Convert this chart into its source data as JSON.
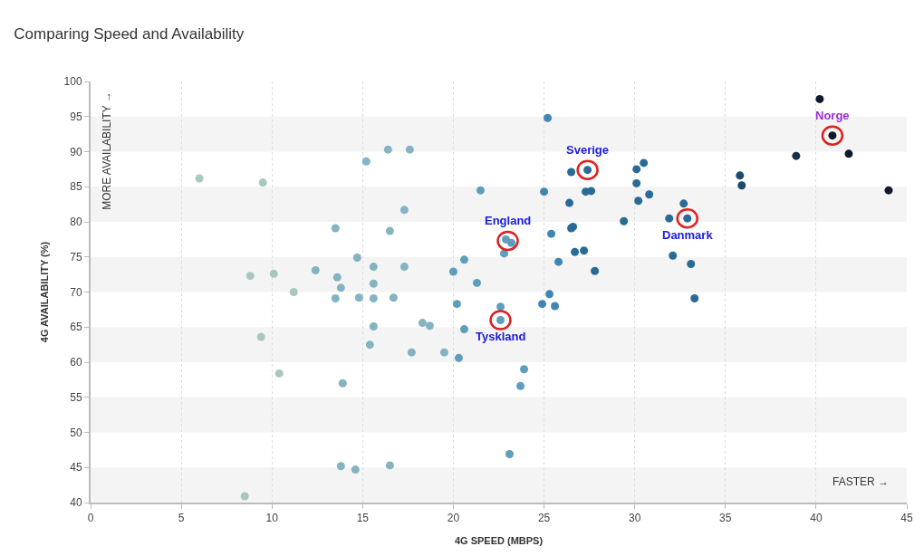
{
  "chart_data": {
    "type": "scatter",
    "title": "Comparing Speed and Availability",
    "xlabel": "4G SPEED (MBPS)",
    "ylabel": "4G AVAILABILITY (%)",
    "x": [
      6.0,
      9.5,
      8.8,
      9.4,
      10.1,
      10.4,
      11.2,
      8.5,
      12.4,
      13.5,
      13.6,
      13.5,
      13.8,
      13.9,
      13.8,
      14.6,
      14.7,
      15.2,
      14.8,
      15.6,
      15.6,
      15.6,
      15.6,
      15.4,
      16.4,
      16.5,
      16.7,
      16.5,
      17.3,
      17.3,
      17.6,
      17.7,
      18.3,
      18.7,
      19.5,
      20.0,
      20.2,
      20.3,
      20.6,
      20.6,
      21.3,
      21.5,
      22.6,
      22.6,
      22.9,
      23.2,
      22.8,
      23.1,
      23.7,
      23.9,
      25.0,
      25.2,
      25.4,
      25.3,
      24.9,
      25.6,
      25.8,
      26.5,
      26.4,
      26.5,
      26.6,
      26.7,
      27.2,
      27.3,
      27.6,
      27.4,
      27.8,
      29.4,
      30.1,
      30.1,
      30.2,
      30.5,
      30.8,
      31.9,
      32.1,
      32.7,
      32.9,
      33.1,
      33.3,
      35.8,
      35.9,
      38.9,
      40.2,
      40.9,
      41.8,
      44.0
    ],
    "values": [
      86.2,
      85.6,
      72.3,
      63.6,
      72.6,
      58.4,
      70.0,
      40.9,
      73.1,
      79.1,
      72.1,
      69.1,
      70.6,
      57.0,
      45.2,
      44.7,
      74.9,
      88.6,
      69.2,
      73.6,
      71.2,
      69.1,
      65.1,
      62.5,
      90.3,
      78.7,
      69.2,
      45.3,
      81.7,
      73.6,
      90.3,
      61.4,
      65.6,
      65.2,
      61.4,
      72.9,
      68.3,
      60.6,
      74.6,
      64.7,
      71.3,
      84.5,
      66.0,
      67.9,
      77.5,
      77.0,
      75.5,
      46.9,
      56.6,
      59.0,
      84.3,
      94.8,
      78.3,
      69.7,
      68.3,
      68.0,
      74.3,
      87.1,
      82.7,
      79.1,
      79.3,
      75.7,
      75.9,
      84.3,
      84.4,
      87.4,
      73.0,
      80.1,
      87.5,
      85.5,
      83.0,
      88.4,
      83.9,
      80.5,
      75.2,
      82.6,
      80.5,
      74.0,
      69.1,
      86.6,
      85.2,
      89.4,
      97.5,
      92.3,
      89.7,
      84.5
    ],
    "colors": [
      "#a8c8bf",
      "#a8c8bf",
      "#a8c8bf",
      "#a8c8bf",
      "#a8c8bf",
      "#a8c8bf",
      "#a8c8bf",
      "#a8c8bf",
      "#84b3c2",
      "#84b3c2",
      "#84b3c2",
      "#84b3c2",
      "#84b3c2",
      "#84b3c2",
      "#84b3c2",
      "#84b3c2",
      "#84b3c2",
      "#84b3c2",
      "#84b3c2",
      "#84b3c2",
      "#84b3c2",
      "#84b3c2",
      "#84b3c2",
      "#84b3c2",
      "#84b3c2",
      "#84b3c2",
      "#84b3c2",
      "#84b3c2",
      "#84b3c2",
      "#84b3c2",
      "#84b3c2",
      "#84b3c2",
      "#84b3c2",
      "#84b3c2",
      "#84b3c2",
      "#5f9dbd",
      "#5f9dbd",
      "#5f9dbd",
      "#5f9dbd",
      "#5f9dbd",
      "#5f9dbd",
      "#5f9dbd",
      "#5f9dbd",
      "#5f9dbd",
      "#5f9dbd",
      "#5f9dbd",
      "#5f9dbd",
      "#5f9dbd",
      "#5f9dbd",
      "#5f9dbd",
      "#3f86b3",
      "#3f86b3",
      "#3f86b3",
      "#3f86b3",
      "#3f86b3",
      "#3f86b3",
      "#3f86b3",
      "#2a6b96",
      "#2a6b96",
      "#2a6b96",
      "#2a6b96",
      "#2a6b96",
      "#2a6b96",
      "#2a6b96",
      "#2a6b96",
      "#2a6b96",
      "#2a6b96",
      "#2a6b96",
      "#2a6b96",
      "#2a6b96",
      "#2a6b96",
      "#2a6b96",
      "#2a6b96",
      "#2a6b96",
      "#2a6b96",
      "#2a6b96",
      "#2a6b96",
      "#2a6b96",
      "#2a6b96",
      "#1d4a6e",
      "#1d4a6e",
      "#152f48",
      "#0e1a2b",
      "#0e1a2b",
      "#0e1a2b",
      "#0e1a2b"
    ],
    "xlim": [
      0,
      45
    ],
    "xticks": [
      0,
      5,
      10,
      15,
      20,
      25,
      30,
      35,
      40,
      45
    ],
    "ylim": [
      40,
      100
    ],
    "yticks": [
      40,
      45,
      50,
      55,
      60,
      65,
      70,
      75,
      80,
      85,
      90,
      95,
      100
    ],
    "grid": "x",
    "marker": "circle",
    "legend": false,
    "bands": [
      {
        "axis": "y",
        "from": 40,
        "to": 45,
        "color": "#f4f4f4"
      },
      {
        "axis": "y",
        "from": 50,
        "to": 55,
        "color": "#f4f4f4"
      },
      {
        "axis": "y",
        "from": 60,
        "to": 65,
        "color": "#f4f4f4"
      },
      {
        "axis": "y",
        "from": 70,
        "to": 75,
        "color": "#f4f4f4"
      },
      {
        "axis": "y",
        "from": 80,
        "to": 85,
        "color": "#f4f4f4"
      },
      {
        "axis": "y",
        "from": 90,
        "to": 95,
        "color": "#f4f4f4"
      }
    ],
    "annotations": [
      "MORE AVAILABILITY →",
      "FASTER →",
      {
        "text": "Sverige",
        "x": 27.4,
        "y": 87.4
      },
      {
        "text": "England",
        "x": 23.0,
        "y": 77.3
      },
      {
        "text": "Danmark",
        "x": 32.9,
        "y": 80.5
      },
      {
        "text": "Tyskland",
        "x": 22.6,
        "y": 66.0
      },
      {
        "text": "Norge",
        "x": 40.9,
        "y": 92.3
      }
    ]
  }
}
